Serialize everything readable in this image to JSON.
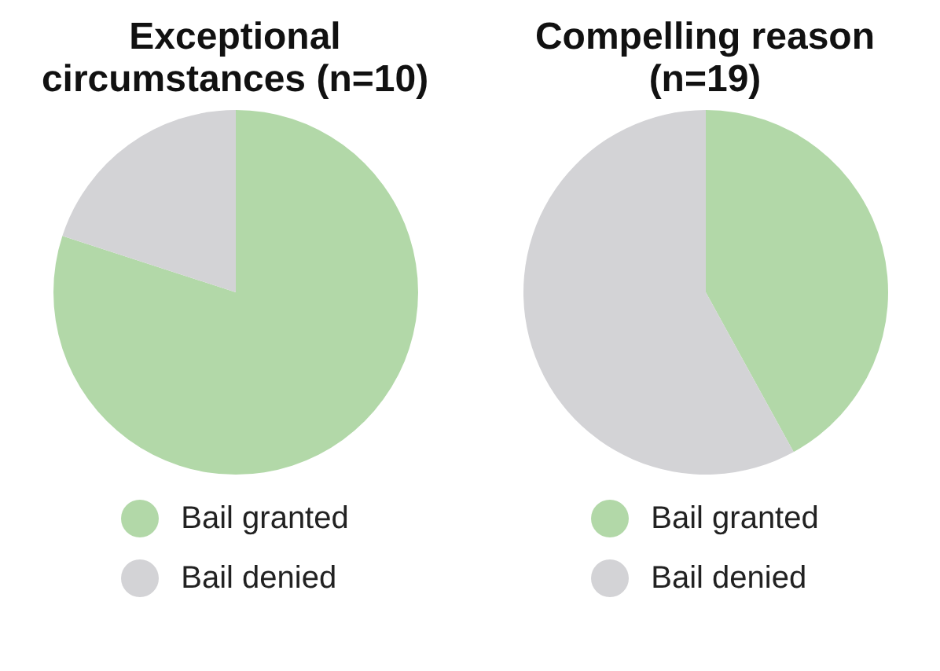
{
  "chart_data": [
    {
      "type": "pie",
      "title": "Exceptional circumstances (n=10)",
      "categories": [
        "Bail granted",
        "Bail denied"
      ],
      "values": [
        80,
        20
      ],
      "colors": [
        "#b2d8a8",
        "#d3d3d6"
      ],
      "legend": "bottom"
    },
    {
      "type": "pie",
      "title": "Compelling reason (n=19)",
      "categories": [
        "Bail granted",
        "Bail denied"
      ],
      "values": [
        42,
        58
      ],
      "colors": [
        "#b2d8a8",
        "#d3d3d6"
      ],
      "legend": "bottom"
    }
  ]
}
